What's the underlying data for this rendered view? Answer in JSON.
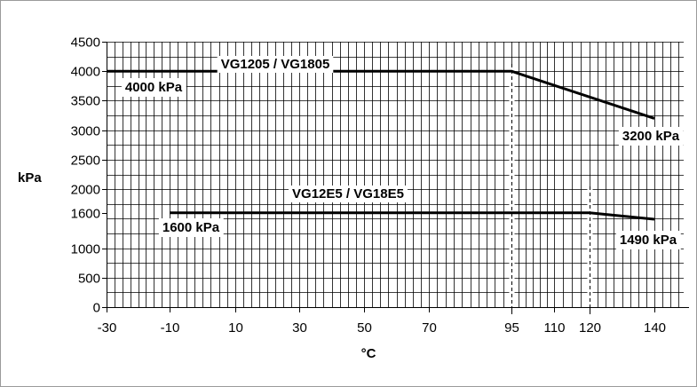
{
  "chart_data": {
    "type": "line",
    "title": "",
    "xlabel": "°C",
    "ylabel": "kPa",
    "xlim": [
      -30,
      148
    ],
    "ylim": [
      0,
      4500
    ],
    "x_ticks": [
      -30,
      -10,
      10,
      30,
      50,
      70,
      95,
      110,
      120,
      140
    ],
    "y_ticks": [
      0,
      500,
      1000,
      1600,
      2000,
      2500,
      3000,
      3500,
      4000,
      4500
    ],
    "grid": true,
    "x_grid_step": 2.5,
    "y_grid_step": 250,
    "series": [
      {
        "name": "VG1205 / VG1805",
        "points": [
          [
            -30,
            4000
          ],
          [
            95,
            4000
          ],
          [
            140,
            3200
          ]
        ],
        "color": "#000000"
      },
      {
        "name": "VG12E5 / VG18E5",
        "points": [
          [
            -10,
            1600
          ],
          [
            120,
            1600
          ],
          [
            140,
            1490
          ]
        ],
        "color": "#000000"
      }
    ],
    "reference_lines": [
      {
        "x": 95,
        "style": "dashed"
      },
      {
        "x": 120,
        "style": "dashed"
      }
    ],
    "annotations": [
      {
        "id": "a4000",
        "text": "4000 kPa",
        "x": -15,
        "y": 3730
      },
      {
        "id": "a3200",
        "text": "3200 kPa",
        "x": 139,
        "y": 2900
      },
      {
        "id": "a1600",
        "text": "1600 kPa",
        "x": -3.5,
        "y": 1350
      },
      {
        "id": "a1490",
        "text": "1490 kPa",
        "x": 138,
        "y": 1140
      }
    ]
  }
}
